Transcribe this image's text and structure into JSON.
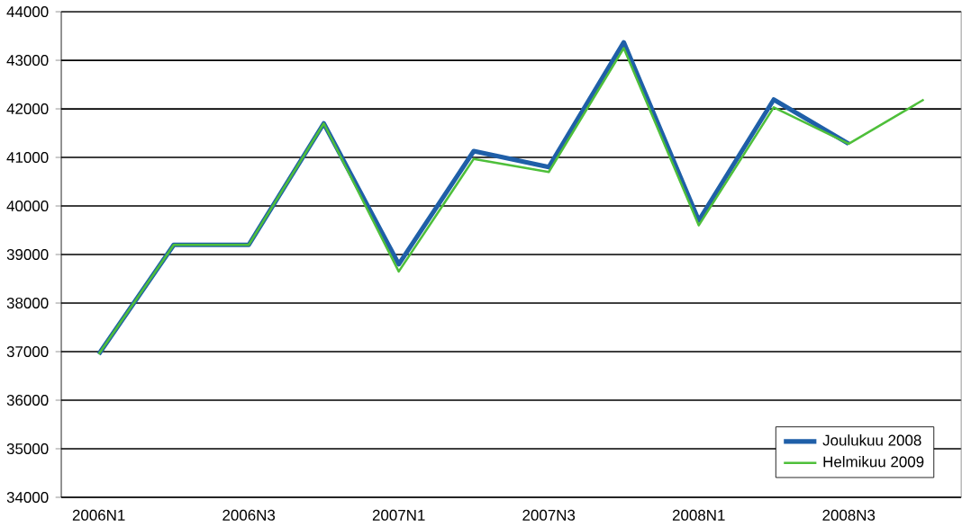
{
  "chart_data": {
    "type": "line",
    "categories": [
      "2006N1",
      null,
      "2006N3",
      null,
      "2007N1",
      null,
      "2007N3",
      null,
      "2008N1",
      null,
      "2008N3",
      null
    ],
    "series": [
      {
        "name": "Joulukuu 2008",
        "color": "#1f5fa8",
        "values": [
          36950,
          39200,
          39200,
          41700,
          38800,
          41130,
          40800,
          43370,
          39700,
          42190,
          41280,
          null
        ]
      },
      {
        "name": "Helmikuu 2009",
        "color": "#4ebf3a",
        "values": [
          36950,
          39200,
          39200,
          41700,
          38650,
          40970,
          40700,
          43250,
          39600,
          42030,
          41280,
          42190
        ]
      }
    ],
    "ylim": [
      34000,
      44000
    ],
    "yticks": [
      34000,
      35000,
      36000,
      37000,
      38000,
      39000,
      40000,
      41000,
      42000,
      43000,
      44000
    ],
    "grid": "y",
    "legend": "bottom right",
    "marker": "none",
    "line_style": "solid"
  }
}
